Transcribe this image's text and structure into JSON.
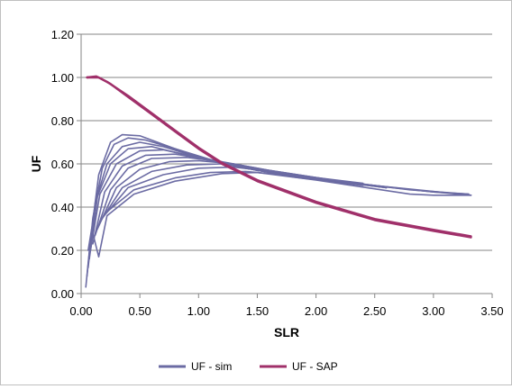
{
  "chart_data": {
    "type": "line",
    "title": "",
    "xlabel": "SLR",
    "ylabel": "UF",
    "xlim": [
      0,
      3.5
    ],
    "ylim": [
      0,
      1.2
    ],
    "xticks": [
      "0.00",
      "0.50",
      "1.00",
      "1.50",
      "2.00",
      "2.50",
      "3.00",
      "3.50"
    ],
    "yticks": [
      "0.00",
      "0.20",
      "0.40",
      "0.60",
      "0.80",
      "1.00",
      "1.20"
    ],
    "grid": true,
    "legend_position": "bottom",
    "series": [
      {
        "name": "UF - sim",
        "color": "#6b6ba3",
        "curves": [
          [
            [
              0.04,
              0.03
            ],
            [
              0.08,
              0.25
            ],
            [
              0.15,
              0.55
            ],
            [
              0.25,
              0.7
            ],
            [
              0.35,
              0.735
            ],
            [
              0.5,
              0.73
            ],
            [
              0.7,
              0.69
            ],
            [
              1.0,
              0.63
            ],
            [
              1.5,
              0.57
            ],
            [
              2.0,
              0.53
            ],
            [
              2.5,
              0.5
            ],
            [
              3.0,
              0.47
            ],
            [
              3.3,
              0.46
            ]
          ],
          [
            [
              0.05,
              0.08
            ],
            [
              0.1,
              0.35
            ],
            [
              0.18,
              0.58
            ],
            [
              0.28,
              0.69
            ],
            [
              0.4,
              0.72
            ],
            [
              0.55,
              0.71
            ],
            [
              0.8,
              0.67
            ],
            [
              1.1,
              0.62
            ],
            [
              1.5,
              0.57
            ],
            [
              2.0,
              0.53
            ],
            [
              2.6,
              0.49
            ]
          ],
          [
            [
              0.06,
              0.12
            ],
            [
              0.12,
              0.42
            ],
            [
              0.22,
              0.6
            ],
            [
              0.35,
              0.68
            ],
            [
              0.5,
              0.7
            ],
            [
              0.7,
              0.68
            ],
            [
              1.0,
              0.63
            ],
            [
              1.4,
              0.58
            ],
            [
              2.0,
              0.53
            ],
            [
              2.5,
              0.5
            ]
          ],
          [
            [
              0.07,
              0.16
            ],
            [
              0.14,
              0.45
            ],
            [
              0.25,
              0.6
            ],
            [
              0.4,
              0.67
            ],
            [
              0.6,
              0.68
            ],
            [
              0.9,
              0.64
            ],
            [
              1.3,
              0.59
            ],
            [
              1.8,
              0.54
            ],
            [
              2.4,
              0.5
            ]
          ],
          [
            [
              0.08,
              0.2
            ],
            [
              0.16,
              0.46
            ],
            [
              0.3,
              0.6
            ],
            [
              0.5,
              0.66
            ],
            [
              0.7,
              0.665
            ],
            [
              1.0,
              0.63
            ],
            [
              1.4,
              0.58
            ],
            [
              2.0,
              0.53
            ],
            [
              2.6,
              0.49
            ]
          ],
          [
            [
              0.1,
              0.23
            ],
            [
              0.2,
              0.47
            ],
            [
              0.35,
              0.59
            ],
            [
              0.55,
              0.64
            ],
            [
              0.8,
              0.645
            ],
            [
              1.1,
              0.62
            ],
            [
              1.5,
              0.57
            ],
            [
              2.2,
              0.52
            ]
          ],
          [
            [
              0.12,
              0.27
            ],
            [
              0.25,
              0.48
            ],
            [
              0.4,
              0.58
            ],
            [
              0.6,
              0.625
            ],
            [
              0.9,
              0.63
            ],
            [
              1.2,
              0.61
            ],
            [
              1.6,
              0.57
            ],
            [
              2.2,
              0.52
            ],
            [
              2.6,
              0.49
            ]
          ],
          [
            [
              0.14,
              0.3
            ],
            [
              0.3,
              0.49
            ],
            [
              0.5,
              0.575
            ],
            [
              0.75,
              0.61
            ],
            [
              1.0,
              0.615
            ],
            [
              1.3,
              0.6
            ],
            [
              1.8,
              0.55
            ],
            [
              2.4,
              0.51
            ]
          ],
          [
            [
              0.16,
              0.33
            ],
            [
              0.35,
              0.49
            ],
            [
              0.6,
              0.565
            ],
            [
              0.9,
              0.595
            ],
            [
              1.2,
              0.6
            ],
            [
              1.6,
              0.57
            ],
            [
              2.2,
              0.52
            ],
            [
              2.8,
              0.48
            ],
            [
              3.3,
              0.46
            ]
          ],
          [
            [
              0.18,
              0.35
            ],
            [
              0.4,
              0.49
            ],
            [
              0.7,
              0.55
            ],
            [
              1.0,
              0.58
            ],
            [
              1.3,
              0.585
            ],
            [
              1.7,
              0.56
            ],
            [
              2.3,
              0.51
            ],
            [
              3.0,
              0.47
            ],
            [
              3.32,
              0.455
            ]
          ],
          [
            [
              0.2,
              0.37
            ],
            [
              0.45,
              0.48
            ],
            [
              0.8,
              0.535
            ],
            [
              1.1,
              0.56
            ],
            [
              1.4,
              0.565
            ],
            [
              1.8,
              0.545
            ],
            [
              2.5,
              0.5
            ],
            [
              3.32,
              0.455
            ]
          ],
          [
            [
              0.06,
              0.2
            ],
            [
              0.09,
              0.3
            ],
            [
              0.15,
              0.17
            ],
            [
              0.22,
              0.36
            ],
            [
              0.45,
              0.46
            ],
            [
              0.8,
              0.52
            ],
            [
              1.2,
              0.555
            ],
            [
              1.5,
              0.56
            ],
            [
              2.0,
              0.525
            ],
            [
              2.8,
              0.46
            ],
            [
              3.0,
              0.455
            ],
            [
              3.32,
              0.455
            ]
          ]
        ]
      },
      {
        "name": "UF - SAP",
        "color": "#a0306a",
        "curves": [
          [
            [
              0.05,
              1.0
            ],
            [
              0.15,
              1.0
            ],
            [
              0.25,
              0.97
            ],
            [
              0.4,
              0.91
            ],
            [
              0.6,
              0.83
            ],
            [
              0.8,
              0.75
            ],
            [
              1.0,
              0.67
            ],
            [
              1.2,
              0.6
            ],
            [
              1.5,
              0.52
            ],
            [
              2.0,
              0.42
            ],
            [
              2.5,
              0.34
            ],
            [
              3.0,
              0.29
            ],
            [
              3.32,
              0.26
            ]
          ],
          [
            [
              0.05,
              1.0
            ],
            [
              0.13,
              1.005
            ],
            [
              0.22,
              0.98
            ],
            [
              0.4,
              0.915
            ],
            [
              0.6,
              0.835
            ],
            [
              0.8,
              0.755
            ],
            [
              1.0,
              0.675
            ],
            [
              1.2,
              0.605
            ],
            [
              1.5,
              0.525
            ],
            [
              2.0,
              0.425
            ],
            [
              2.5,
              0.345
            ],
            [
              3.0,
              0.295
            ],
            [
              3.32,
              0.265
            ]
          ]
        ]
      }
    ]
  }
}
